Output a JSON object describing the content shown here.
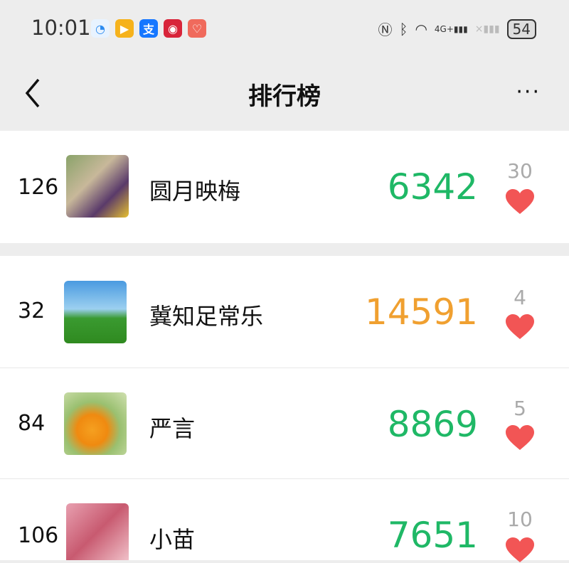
{
  "status_bar": {
    "time": "10:01",
    "battery": "54",
    "network": "4G+",
    "app_icons": [
      "qq-browser-icon",
      "video-icon",
      "alipay-icon",
      "tmall-icon",
      "heart-app-icon"
    ],
    "system_icons": [
      "nfc-icon",
      "bluetooth-icon",
      "wifi-icon",
      "signal-icon",
      "no-signal-icon"
    ]
  },
  "nav": {
    "title": "排行榜",
    "back_icon": "chevron-left-icon",
    "more_icon": "more-dots-icon",
    "more_label": "···"
  },
  "colors": {
    "green": "#1fb866",
    "orange": "#f0a030",
    "heart": "#f25555"
  },
  "my_entry": {
    "rank": "126",
    "name": "圆月映梅",
    "score": "6342",
    "likes": "30",
    "score_color": "green"
  },
  "entries": [
    {
      "rank": "32",
      "name": "冀知足常乐",
      "score": "14591",
      "likes": "4",
      "score_color": "orange"
    },
    {
      "rank": "84",
      "name": "严言",
      "score": "8869",
      "likes": "5",
      "score_color": "green"
    },
    {
      "rank": "106",
      "name": "小苗",
      "score": "7651",
      "likes": "10",
      "score_color": "green"
    }
  ]
}
